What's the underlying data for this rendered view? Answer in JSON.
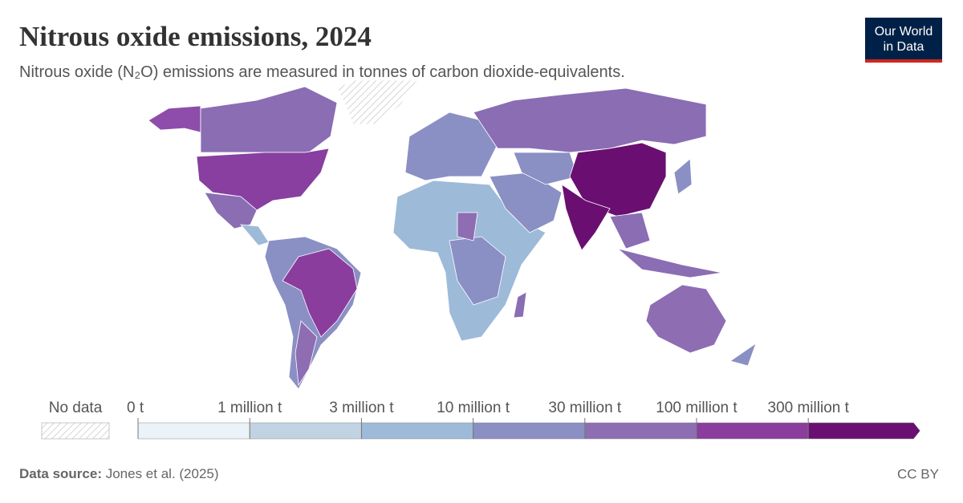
{
  "title": "Nitrous oxide emissions, 2024",
  "subtitle": "Nitrous oxide (N₂O) emissions are measured in tonnes of carbon dioxide-equivalents.",
  "logo": {
    "line1": "Our World",
    "line2": "in Data"
  },
  "legend": {
    "no_data": "No data",
    "ticks": [
      {
        "value": 0,
        "label": "0 t"
      },
      {
        "value": 1000000,
        "label": "1 million t"
      },
      {
        "value": 3000000,
        "label": "3 million t"
      },
      {
        "value": 10000000,
        "label": "10 million t"
      },
      {
        "value": 30000000,
        "label": "30 million t"
      },
      {
        "value": 100000000,
        "label": "100 million t"
      },
      {
        "value": 300000000,
        "label": "300 million t"
      }
    ],
    "colors": [
      "#eaf3f7",
      "#c1d3e3",
      "#9ebad9",
      "#8a90c4",
      "#8e6db3",
      "#8a3d9d",
      "#6a0f71"
    ]
  },
  "footer": {
    "source_label": "Data source:",
    "source": "Jones et al. (2025)",
    "license": "CC BY"
  }
}
